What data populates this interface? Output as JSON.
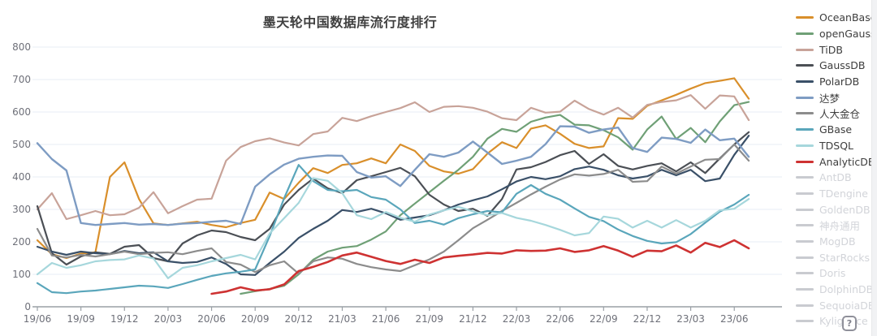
{
  "page": {
    "background": "#ffffff",
    "accent": "#d98f2b"
  },
  "title": "墨天轮中国数据库流行度排行",
  "help_button": {
    "label": "?"
  },
  "legend": {
    "position": "right",
    "disabled_color": "#d2d4d9",
    "items": [
      {
        "label": "OceanBase",
        "color": "#d98f2b",
        "active": true
      },
      {
        "label": "openGauss",
        "color": "#6fa076",
        "active": true
      },
      {
        "label": "TiDB",
        "color": "#c8a399",
        "active": true
      },
      {
        "label": "GaussDB",
        "color": "#4b4f55",
        "active": true
      },
      {
        "label": "PolarDB",
        "color": "#3a5068",
        "active": true
      },
      {
        "label": "达梦",
        "color": "#7e9cc3",
        "active": true
      },
      {
        "label": "人大金仓",
        "color": "#8c8c8c",
        "active": true
      },
      {
        "label": "GBase",
        "color": "#5aa6bb",
        "active": true
      },
      {
        "label": "TDSQL",
        "color": "#a6d7dc",
        "active": true
      },
      {
        "label": "AnalyticDB",
        "color": "#ce3232",
        "active": true
      },
      {
        "label": "AntDB",
        "color": "#c9cbd0",
        "active": false
      },
      {
        "label": "TDengine",
        "color": "#c9cbd0",
        "active": false
      },
      {
        "label": "GoldenDB",
        "color": "#c9cbd0",
        "active": false
      },
      {
        "label": "神舟通用",
        "color": "#c9cbd0",
        "active": false
      },
      {
        "label": "MogDB",
        "color": "#c9cbd0",
        "active": false
      },
      {
        "label": "StarRocks",
        "color": "#c9cbd0",
        "active": false
      },
      {
        "label": "Doris",
        "color": "#c9cbd0",
        "active": false
      },
      {
        "label": "DolphinDB",
        "color": "#c9cbd0",
        "active": false
      },
      {
        "label": "SequoiaDB",
        "color": "#c9cbd0",
        "active": false
      },
      {
        "label": "Kyligence",
        "color": "#c9cbd0",
        "active": false
      }
    ]
  },
  "chart_data": {
    "type": "line",
    "title": "墨天轮中国数据库流行度排行",
    "xlabel": "",
    "ylabel": "",
    "ylim": [
      0,
      800
    ],
    "grid": true,
    "legend_position": "right",
    "y_ticks": [
      0,
      100,
      200,
      300,
      400,
      500,
      600,
      700,
      800
    ],
    "x_tick_labels": [
      "19/06",
      "19/09",
      "19/12",
      "20/03",
      "20/06",
      "20/09",
      "20/12",
      "21/03",
      "21/06",
      "21/09",
      "21/12",
      "22/03",
      "22/06",
      "22/09",
      "22/12",
      "23/03",
      "23/06"
    ],
    "categories": [
      "19/06",
      "19/07",
      "19/08",
      "19/09",
      "19/10",
      "19/11",
      "19/12",
      "20/01",
      "20/02",
      "20/03",
      "20/04",
      "20/05",
      "20/06",
      "20/07",
      "20/08",
      "20/09",
      "20/10",
      "20/11",
      "20/12",
      "21/01",
      "21/02",
      "21/03",
      "21/04",
      "21/05",
      "21/06",
      "21/07",
      "21/08",
      "21/09",
      "21/10",
      "21/11",
      "21/12",
      "22/01",
      "22/02",
      "22/03",
      "22/04",
      "22/05",
      "22/06",
      "22/07",
      "22/08",
      "22/09",
      "22/10",
      "22/11",
      "22/12",
      "23/01",
      "23/02",
      "23/03",
      "23/04",
      "23/05",
      "23/06",
      "23/07"
    ],
    "series": [
      {
        "name": "OceanBase",
        "color": "#d98f2b",
        "width": 2.2,
        "values": [
          205,
          162,
          150,
          164,
          168,
          400,
          445,
          332,
          257,
          252,
          257,
          262,
          252,
          245,
          258,
          268,
          352,
          332,
          382,
          427,
          412,
          437,
          442,
          457,
          442,
          500,
          480,
          434,
          417,
          410,
          424,
          472,
          507,
          489,
          549,
          559,
          533,
          502,
          489,
          494,
          581,
          579,
          619,
          636,
          653,
          672,
          689,
          696,
          704,
          641
        ]
      },
      {
        "name": "openGauss",
        "color": "#6fa076",
        "width": 2.2,
        "values": [
          null,
          null,
          null,
          null,
          null,
          null,
          null,
          null,
          null,
          null,
          null,
          null,
          null,
          null,
          40,
          48,
          55,
          65,
          100,
          145,
          170,
          182,
          187,
          207,
          232,
          282,
          318,
          353,
          388,
          422,
          462,
          518,
          548,
          539,
          570,
          583,
          591,
          561,
          559,
          544,
          522,
          484,
          546,
          586,
          517,
          551,
          507,
          571,
          621,
          631
        ]
      },
      {
        "name": "TiDB",
        "color": "#c8a399",
        "width": 2.2,
        "values": [
          300,
          350,
          270,
          282,
          295,
          282,
          285,
          305,
          353,
          288,
          310,
          330,
          333,
          450,
          492,
          510,
          519,
          506,
          497,
          532,
          540,
          582,
          572,
          587,
          600,
          612,
          630,
          600,
          616,
          618,
          613,
          601,
          581,
          575,
          613,
          598,
          601,
          635,
          609,
          592,
          613,
          583,
          622,
          631,
          636,
          652,
          610,
          651,
          648,
          575
        ]
      },
      {
        "name": "GaussDB",
        "color": "#4b4f55",
        "width": 2.2,
        "values": [
          310,
          165,
          130,
          155,
          168,
          163,
          185,
          190,
          150,
          140,
          195,
          220,
          235,
          230,
          215,
          205,
          240,
          315,
          360,
          395,
          365,
          350,
          390,
          402,
          415,
          428,
          402,
          345,
          315,
          295,
          302,
          280,
          332,
          423,
          430,
          446,
          467,
          480,
          440,
          470,
          434,
          423,
          434,
          442,
          417,
          445,
          412,
          457,
          500,
          538
        ]
      },
      {
        "name": "PolarDB",
        "color": "#3a5068",
        "width": 2.2,
        "values": [
          185,
          170,
          160,
          170,
          165,
          162,
          172,
          165,
          168,
          140,
          135,
          138,
          152,
          132,
          100,
          98,
          135,
          170,
          212,
          240,
          265,
          298,
          292,
          302,
          288,
          268,
          275,
          282,
          297,
          315,
          328,
          340,
          362,
          386,
          400,
          393,
          402,
          424,
          432,
          422,
          405,
          395,
          402,
          422,
          405,
          422,
          387,
          395,
          468,
          527
        ]
      },
      {
        "name": "达梦",
        "color": "#7e9cc3",
        "width": 2.4,
        "values": [
          504,
          455,
          420,
          258,
          252,
          255,
          258,
          253,
          255,
          252,
          256,
          258,
          262,
          265,
          255,
          370,
          408,
          438,
          456,
          462,
          466,
          465,
          415,
          398,
          402,
          372,
          422,
          470,
          462,
          475,
          509,
          475,
          440,
          450,
          462,
          501,
          556,
          555,
          536,
          546,
          552,
          489,
          477,
          521,
          517,
          505,
          546,
          513,
          518,
          462
        ]
      },
      {
        "name": "人大金仓",
        "color": "#8c8c8c",
        "width": 2.2,
        "values": [
          240,
          158,
          152,
          160,
          155,
          162,
          170,
          162,
          166,
          168,
          162,
          172,
          180,
          138,
          130,
          107,
          128,
          140,
          102,
          140,
          152,
          148,
          132,
          122,
          115,
          110,
          128,
          146,
          170,
          205,
          242,
          268,
          295,
          320,
          346,
          370,
          392,
          408,
          404,
          409,
          422,
          385,
          387,
          432,
          410,
          432,
          453,
          455,
          500,
          450
        ]
      },
      {
        "name": "GBase",
        "color": "#5aa6bb",
        "width": 2.2,
        "values": [
          73,
          45,
          42,
          47,
          50,
          55,
          60,
          65,
          63,
          58,
          70,
          83,
          95,
          103,
          108,
          115,
          218,
          335,
          437,
          387,
          360,
          356,
          360,
          338,
          330,
          300,
          258,
          265,
          253,
          273,
          285,
          295,
          291,
          348,
          375,
          348,
          330,
          303,
          277,
          264,
          238,
          218,
          203,
          195,
          199,
          224,
          259,
          293,
          315,
          345
        ]
      },
      {
        "name": "TDSQL",
        "color": "#a6d7dc",
        "width": 2.2,
        "values": [
          100,
          135,
          120,
          128,
          140,
          144,
          146,
          158,
          149,
          88,
          120,
          128,
          140,
          150,
          160,
          146,
          226,
          273,
          320,
          396,
          388,
          350,
          282,
          270,
          292,
          274,
          262,
          284,
          297,
          308,
          294,
          282,
          289,
          274,
          265,
          252,
          237,
          220,
          227,
          278,
          271,
          244,
          265,
          244,
          267,
          244,
          265,
          297,
          302,
          332
        ]
      },
      {
        "name": "AnalyticDB",
        "color": "#ce3232",
        "width": 2.6,
        "values": [
          null,
          null,
          null,
          null,
          null,
          null,
          null,
          null,
          null,
          null,
          null,
          null,
          40,
          47,
          60,
          50,
          54,
          69,
          110,
          123,
          138,
          158,
          167,
          154,
          141,
          132,
          145,
          135,
          152,
          157,
          161,
          166,
          164,
          174,
          172,
          173,
          180,
          169,
          174,
          187,
          173,
          154,
          173,
          171,
          189,
          167,
          197,
          184,
          205,
          180
        ]
      }
    ]
  }
}
